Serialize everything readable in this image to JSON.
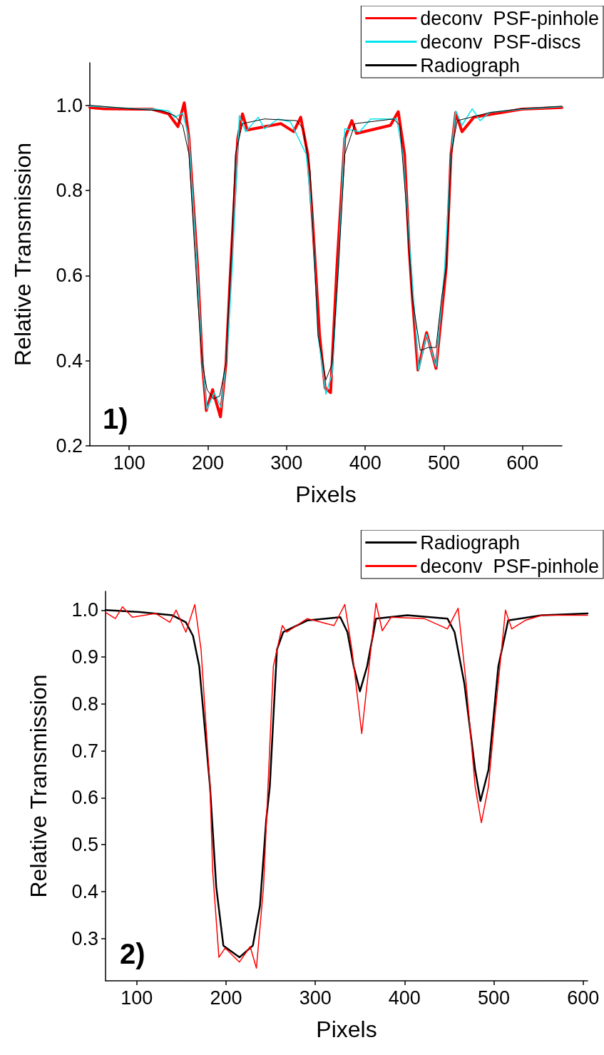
{
  "chart_data": [
    {
      "type": "line",
      "xlabel": "Pixels",
      "ylabel": "Relative Transmission",
      "annotations": [
        "1)"
      ],
      "xlim": [
        50,
        650
      ],
      "ylim": [
        0.2,
        1.1
      ],
      "xticks": [
        100,
        200,
        300,
        400,
        500,
        600
      ],
      "yticks": [
        0.2,
        0.4,
        0.6,
        0.8,
        {
          "value": 1,
          "label": "1.0"
        }
      ],
      "grid": false,
      "legend": "top right",
      "marker": "none",
      "line_style": "solid",
      "series": [
        {
          "name": "deconv  PSF-pinhole",
          "color": "#ff0000",
          "x": [
            50,
            68,
            109,
            129,
            150,
            162,
            170,
            176,
            187,
            193,
            198,
            206,
            216,
            223,
            229,
            238,
            244,
            250,
            293,
            309,
            318,
            327,
            333,
            342,
            349,
            356,
            364,
            374,
            383,
            389,
            432,
            442,
            450,
            456,
            460,
            467,
            478,
            490,
            499,
            503,
            509,
            515,
            523,
            538,
            599,
            650
          ],
          "values": [
            0.995,
            0.992,
            0.991,
            0.991,
            0.98,
            0.95,
            1.006,
            0.923,
            0.62,
            0.393,
            0.283,
            0.332,
            0.268,
            0.393,
            0.62,
            0.923,
            0.98,
            0.942,
            0.957,
            0.938,
            0.972,
            0.885,
            0.733,
            0.46,
            0.336,
            0.325,
            0.62,
            0.923,
            0.964,
            0.934,
            0.953,
            0.985,
            0.885,
            0.657,
            0.546,
            0.378,
            0.466,
            0.382,
            0.546,
            0.62,
            0.885,
            0.983,
            0.938,
            0.972,
            0.991,
            0.995
          ]
        },
        {
          "name": "deconv  PSF-discs",
          "color": "#00e5ee",
          "x": [
            50,
            109,
            133,
            150,
            158,
            168,
            176,
            187,
            193,
            199,
            208,
            217,
            225,
            231,
            240,
            248,
            264,
            272,
            289,
            305,
            325,
            333,
            340,
            350,
            358,
            366,
            374,
            393,
            407,
            423,
            440,
            448,
            468,
            478,
            490,
            501,
            509,
            515,
            523,
            536,
            546,
            558,
            599,
            650
          ],
          "values": [
            0.998,
            0.992,
            0.991,
            0.987,
            0.972,
            0.982,
            0.923,
            0.6,
            0.393,
            0.286,
            0.325,
            0.29,
            0.431,
            0.62,
            0.976,
            0.938,
            0.972,
            0.945,
            0.968,
            0.961,
            0.885,
            0.733,
            0.46,
            0.321,
            0.37,
            0.62,
            0.945,
            0.938,
            0.968,
            0.968,
            0.968,
            0.885,
            0.378,
            0.462,
            0.386,
            0.62,
            0.885,
            0.987,
            0.953,
            0.992,
            0.964,
            0.983,
            0.991,
            0.997
          ]
        },
        {
          "name": "Radiograph",
          "color": "#000000",
          "x": [
            50,
            109,
            142,
            158,
            168,
            176,
            187,
            193,
            199,
            207,
            215,
            223,
            229,
            235,
            244,
            272,
            313,
            321,
            330,
            333,
            340,
            350,
            358,
            366,
            374,
            387,
            436,
            444,
            452,
            460,
            470,
            480,
            490,
            497,
            503,
            509,
            517,
            558,
            599,
            650
          ],
          "values": [
            1.0,
            0.991,
            0.987,
            0.976,
            0.953,
            0.885,
            0.546,
            0.393,
            0.332,
            0.31,
            0.317,
            0.393,
            0.62,
            0.885,
            0.957,
            0.968,
            0.964,
            0.945,
            0.847,
            0.733,
            0.46,
            0.355,
            0.393,
            0.62,
            0.885,
            0.957,
            0.968,
            0.953,
            0.77,
            0.546,
            0.424,
            0.431,
            0.431,
            0.546,
            0.62,
            0.885,
            0.964,
            0.983,
            0.992,
            0.998
          ]
        }
      ]
    },
    {
      "type": "line",
      "xlabel": "Pixels",
      "ylabel": "Relative Transmission",
      "annotations": [
        "2)"
      ],
      "xlim": [
        65,
        605
      ],
      "ylim": [
        0.21,
        1.04
      ],
      "xticks": [
        100,
        200,
        300,
        400,
        500,
        600
      ],
      "yticks": [
        0.3,
        0.4,
        0.5,
        0.6,
        0.7,
        0.8,
        0.9,
        {
          "value": 1,
          "label": "1.0"
        }
      ],
      "grid": false,
      "legend": "top right",
      "marker": "none",
      "line_style": "solid",
      "series": [
        {
          "name": "Radiograph",
          "color": "#000000",
          "x": [
            65,
            103,
            140,
            155,
            163,
            170,
            182,
            189,
            197,
            215,
            230,
            238,
            245,
            249,
            257,
            264,
            291,
            328,
            336,
            343,
            350,
            358,
            368,
            403,
            448,
            456,
            467,
            479,
            485,
            494,
            505,
            516,
            554,
            605
          ],
          "values": [
            1.0,
            0.996,
            0.989,
            0.974,
            0.945,
            0.88,
            0.625,
            0.41,
            0.285,
            0.26,
            0.285,
            0.37,
            0.553,
            0.624,
            0.916,
            0.953,
            0.978,
            0.985,
            0.953,
            0.88,
            0.827,
            0.88,
            0.982,
            0.989,
            0.982,
            0.953,
            0.843,
            0.66,
            0.593,
            0.66,
            0.88,
            0.978,
            0.989,
            0.993
          ]
        },
        {
          "name": "deconv  PSF-pinhole",
          "color": "#ff0000",
          "x": [
            65,
            76,
            84,
            95,
            121,
            137,
            144,
            155,
            165,
            172,
            182,
            185,
            192,
            199,
            215,
            227,
            234,
            242,
            247,
            253,
            263,
            268,
            291,
            321,
            333,
            341,
            352,
            358,
            368,
            375,
            385,
            422,
            448,
            460,
            469,
            479,
            486,
            494,
            501,
            513,
            520,
            535,
            554,
            605
          ],
          "values": [
            0.995,
            0.982,
            1.007,
            0.985,
            0.993,
            0.974,
            1.0,
            0.953,
            1.012,
            0.916,
            0.625,
            0.445,
            0.26,
            0.28,
            0.25,
            0.283,
            0.237,
            0.41,
            0.625,
            0.88,
            0.967,
            0.953,
            0.982,
            0.967,
            1.012,
            0.916,
            0.737,
            0.843,
            1.015,
            0.956,
            0.985,
            0.982,
            0.96,
            1.004,
            0.843,
            0.625,
            0.547,
            0.625,
            0.77,
            1.0,
            0.96,
            0.978,
            0.989,
            0.989
          ]
        }
      ]
    }
  ]
}
